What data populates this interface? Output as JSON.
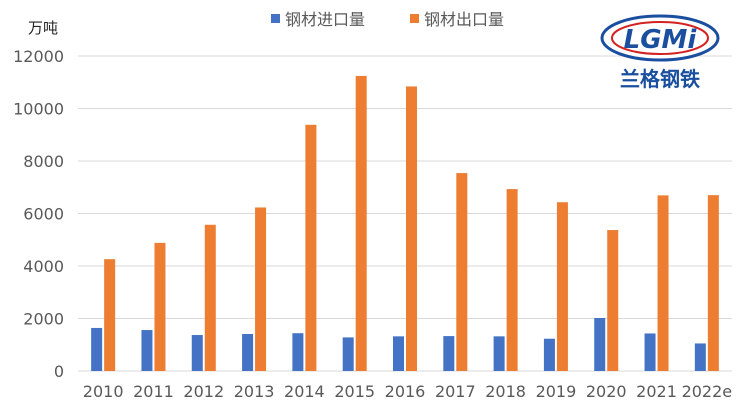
{
  "chart_data": {
    "type": "bar",
    "unit_label": "万吨",
    "categories": [
      "2010",
      "2011",
      "2012",
      "2013",
      "2014",
      "2015",
      "2016",
      "2017",
      "2018",
      "2019",
      "2020",
      "2021",
      "2022e"
    ],
    "series": [
      {
        "name": "钢材进口量",
        "color": "#4472C4",
        "values": [
          1640,
          1560,
          1370,
          1410,
          1440,
          1280,
          1320,
          1330,
          1320,
          1230,
          2020,
          1430,
          1050
        ]
      },
      {
        "name": "钢材出口量",
        "color": "#ED7D31",
        "values": [
          4260,
          4880,
          5570,
          6230,
          9380,
          11240,
          10840,
          7540,
          6930,
          6430,
          5370,
          6690,
          6700
        ]
      }
    ],
    "ylim": [
      0,
      12000
    ],
    "yticks": [
      0,
      2000,
      4000,
      6000,
      8000,
      10000,
      12000
    ],
    "grid": true,
    "legend_position": "top-center"
  },
  "logo": {
    "text": "LGMi",
    "subtitle": "兰格钢铁",
    "color_blue": "#1a4fa0",
    "color_red": "#d32020"
  }
}
